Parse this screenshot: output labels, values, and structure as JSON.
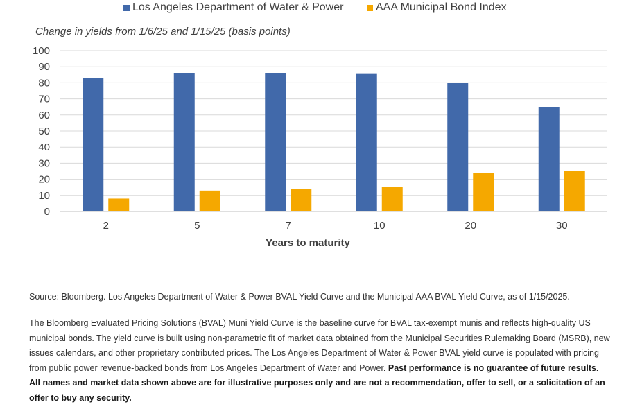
{
  "chart_data": {
    "type": "bar",
    "subtitle": "Change in yields from 1/6/25 and 1/15/25 (basis points)",
    "xlabel": "Years to maturity",
    "ylabel": "",
    "categories": [
      "2",
      "5",
      "7",
      "10",
      "20",
      "30"
    ],
    "series": [
      {
        "name": "Los Angeles Department of Water & Power",
        "color": "#4169AA",
        "values": [
          83,
          86,
          86,
          85.5,
          80,
          65
        ]
      },
      {
        "name": "AAA Municipal Bond Index",
        "color": "#F5A800",
        "values": [
          8,
          13,
          14,
          15.5,
          24,
          25
        ]
      }
    ],
    "ylim": [
      0,
      100
    ],
    "yticks": [
      0,
      10,
      20,
      30,
      40,
      50,
      60,
      70,
      80,
      90,
      100
    ],
    "grid": true,
    "legend_position": "top"
  },
  "notes": {
    "source": "Source: Bloomberg. Los Angeles Department of Water & Power BVAL Yield Curve and the Municipal AAA BVAL Yield Curve, as of 1/15/2025.",
    "disclaimer_text": "The Bloomberg Evaluated Pricing Solutions (BVAL) Muni Yield Curve is the baseline curve for BVAL tax-exempt munis and reflects high-quality US municipal bonds. The yield curve is built using non-parametric fit of market data obtained from the Municipal Securities Rulemaking Board (MSRB), new issues calendars, and other proprietary contributed prices. The Los Angeles Department of Water & Power BVAL yield curve is populated with pricing from public power revenue-backed bonds from Los Angeles Department of Water and Power.",
    "disclaimer_bold": "Past performance is no guarantee of future results. All names and market data shown above are for illustrative purposes only and are not a recommendation, offer to sell, or a solicitation of an offer to buy any security."
  }
}
